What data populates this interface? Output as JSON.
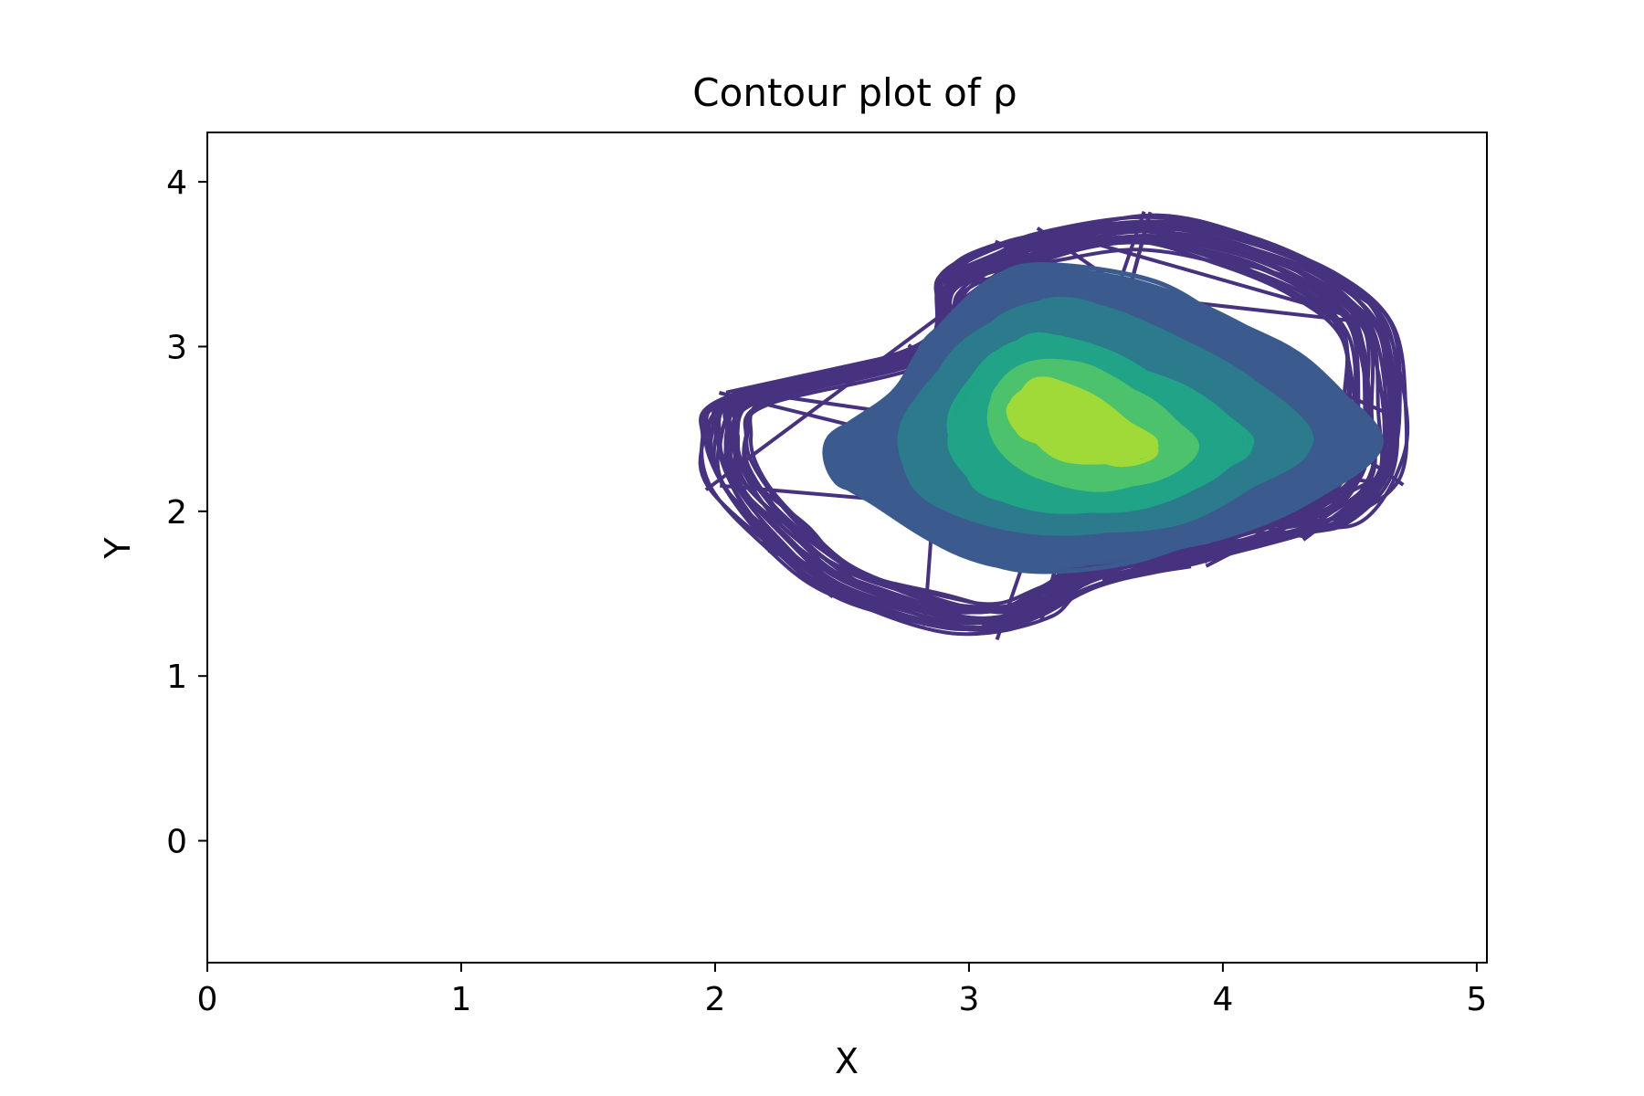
{
  "chart_data": {
    "type": "contour",
    "title": "Contour plot of ρ",
    "xlabel": "X",
    "ylabel": "Y",
    "xlim": [
      0,
      5.04
    ],
    "ylim": [
      -0.74,
      4.3
    ],
    "xticks": [
      0,
      1,
      2,
      3,
      4,
      5
    ],
    "yticks": [
      0,
      1,
      2,
      3,
      4
    ],
    "xtick_labels": [
      "0",
      "1",
      "2",
      "3",
      "4",
      "5"
    ],
    "ytick_labels": [
      "0",
      "1",
      "2",
      "3",
      "4"
    ],
    "grid": false,
    "legend": false,
    "colormap": "viridis",
    "levels": [
      {
        "level": 1,
        "color": "#46327e",
        "style": "line",
        "center": [
          3.25,
          2.55
        ],
        "outline": [
          [
            1.95,
            2.45
          ],
          [
            2.05,
            2.7
          ],
          [
            2.8,
            3.0
          ],
          [
            2.9,
            3.42
          ],
          [
            3.1,
            3.6
          ],
          [
            3.3,
            3.68
          ],
          [
            3.7,
            3.78
          ],
          [
            4.1,
            3.68
          ],
          [
            4.45,
            3.45
          ],
          [
            4.65,
            3.15
          ],
          [
            4.7,
            2.6
          ],
          [
            4.68,
            2.2
          ],
          [
            4.52,
            1.95
          ],
          [
            4.3,
            1.86
          ],
          [
            3.9,
            1.7
          ],
          [
            3.5,
            1.55
          ],
          [
            3.3,
            1.38
          ],
          [
            3.1,
            1.26
          ],
          [
            2.85,
            1.3
          ],
          [
            2.45,
            1.5
          ],
          [
            2.2,
            1.8
          ],
          [
            2.0,
            2.15
          ]
        ]
      },
      {
        "level": 2,
        "color": "#3b5a8e",
        "style": "filled",
        "center": [
          3.45,
          2.55
        ],
        "outline": [
          [
            2.45,
            2.45
          ],
          [
            2.7,
            2.7
          ],
          [
            2.85,
            3.05
          ],
          [
            3.1,
            3.38
          ],
          [
            3.3,
            3.5
          ],
          [
            3.7,
            3.38
          ],
          [
            4.05,
            3.15
          ],
          [
            4.4,
            2.85
          ],
          [
            4.6,
            2.4
          ],
          [
            4.35,
            2.1
          ],
          [
            4.0,
            1.85
          ],
          [
            3.6,
            1.7
          ],
          [
            3.2,
            1.66
          ],
          [
            2.9,
            1.8
          ],
          [
            2.65,
            2.05
          ],
          [
            2.45,
            2.2
          ]
        ]
      },
      {
        "level": 3,
        "color": "#2b7b8c",
        "style": "filled",
        "center": [
          3.5,
          2.55
        ],
        "outline": [
          [
            2.75,
            2.6
          ],
          [
            2.95,
            2.95
          ],
          [
            3.15,
            3.2
          ],
          [
            3.4,
            3.28
          ],
          [
            3.75,
            3.1
          ],
          [
            4.1,
            2.8
          ],
          [
            4.32,
            2.42
          ],
          [
            4.1,
            2.15
          ],
          [
            3.8,
            1.95
          ],
          [
            3.45,
            1.86
          ],
          [
            3.1,
            1.9
          ],
          [
            2.85,
            2.1
          ],
          [
            2.75,
            2.35
          ]
        ]
      },
      {
        "level": 4,
        "color": "#20a386",
        "style": "filled",
        "center": [
          3.5,
          2.5
        ],
        "outline": [
          [
            2.95,
            2.65
          ],
          [
            3.1,
            2.95
          ],
          [
            3.3,
            3.05
          ],
          [
            3.55,
            2.95
          ],
          [
            3.85,
            2.7
          ],
          [
            4.1,
            2.42
          ],
          [
            3.9,
            2.18
          ],
          [
            3.6,
            2.02
          ],
          [
            3.3,
            2.0
          ],
          [
            3.05,
            2.15
          ],
          [
            2.95,
            2.4
          ]
        ]
      },
      {
        "level": 5,
        "color": "#4cc26c",
        "style": "filled",
        "center": [
          3.45,
          2.5
        ],
        "outline": [
          [
            3.1,
            2.7
          ],
          [
            3.25,
            2.88
          ],
          [
            3.45,
            2.85
          ],
          [
            3.7,
            2.65
          ],
          [
            3.9,
            2.4
          ],
          [
            3.75,
            2.22
          ],
          [
            3.5,
            2.15
          ],
          [
            3.25,
            2.25
          ],
          [
            3.1,
            2.45
          ]
        ]
      },
      {
        "level": 6,
        "color": "#a0da39",
        "style": "filled",
        "center": [
          3.45,
          2.5
        ],
        "outline": [
          [
            3.18,
            2.65
          ],
          [
            3.28,
            2.78
          ],
          [
            3.45,
            2.7
          ],
          [
            3.62,
            2.52
          ],
          [
            3.72,
            2.38
          ],
          [
            3.58,
            2.3
          ],
          [
            3.4,
            2.34
          ],
          [
            3.22,
            2.48
          ]
        ]
      }
    ]
  }
}
